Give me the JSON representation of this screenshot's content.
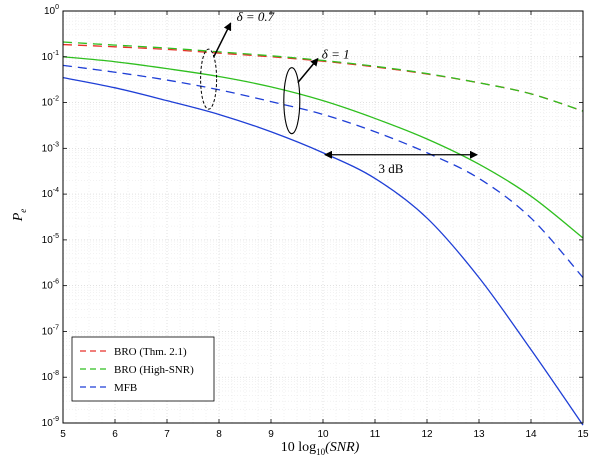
{
  "chart_data": {
    "type": "line",
    "title": "",
    "xlabel": "10 log10(SNR)",
    "ylabel": "P_e",
    "xlim": [
      5,
      15
    ],
    "ylim_log10": [
      -9,
      0
    ],
    "y_scale": "log",
    "grid": "major and minor, dotted",
    "legend_position": "bottom-left",
    "x_ticks": [
      "5",
      "6",
      "7",
      "8",
      "9",
      "10",
      "11",
      "12",
      "13",
      "14",
      "15"
    ],
    "y_ticks": [
      "10^-9",
      "10^-8",
      "10^-7",
      "10^-6",
      "10^-5",
      "10^-4",
      "10^-3",
      "10^-2",
      "10^-1",
      "10^0"
    ],
    "x": [
      5,
      6,
      7,
      8,
      9,
      10,
      11,
      12,
      13,
      14,
      15
    ],
    "series": [
      {
        "name": "BRO (Thm. 2.1)",
        "group": "delta = 0.7",
        "color": "#e8312a",
        "dash": "dashed",
        "values": [
          0.185,
          0.165,
          0.145,
          0.12,
          0.1,
          0.08,
          0.06,
          0.042,
          0.027,
          0.0155,
          0.0065
        ]
      },
      {
        "name": "BRO (High-SNR)",
        "group": "delta = 0.7",
        "color": "#2fbf1f",
        "dash": "dashed",
        "values": [
          0.21,
          0.18,
          0.155,
          0.128,
          0.105,
          0.083,
          0.062,
          0.043,
          0.027,
          0.0155,
          0.0065
        ]
      },
      {
        "name": "",
        "group": "delta = 1",
        "color": "#2fbf1f",
        "dash": "solid",
        "values": [
          0.1,
          0.078,
          0.055,
          0.037,
          0.022,
          0.011,
          0.0045,
          0.0016,
          0.00045,
          9e-05,
          1.1e-05
        ]
      },
      {
        "name": "MFB",
        "group": "delta = 0.7",
        "color": "#1f3fd6",
        "dash": "dashed",
        "values": [
          0.065,
          0.046,
          0.031,
          0.019,
          0.0105,
          0.0055,
          0.0023,
          0.0008,
          0.00022,
          3e-05,
          1.5e-06
        ]
      },
      {
        "name": "",
        "group": "delta = 1",
        "color": "#1f3fd6",
        "dash": "solid",
        "values": [
          0.035,
          0.021,
          0.011,
          0.0055,
          0.0023,
          0.0008,
          0.00022,
          3e-05,
          1.5e-06,
          4e-08,
          9e-10
        ]
      }
    ],
    "annotations": [
      {
        "text": "δ = 0.7",
        "target_x": 7.8,
        "target_y": 0.12
      },
      {
        "text": "δ = 1",
        "target_x": 9.4,
        "target_y": 0.011
      },
      {
        "text": "3 dB",
        "from_x": 10,
        "to_x": 13,
        "y": 0.0008
      }
    ]
  },
  "axis_text": {
    "xlabel_main": "10 log",
    "xlabel_sub": "10",
    "xlabel_arg": "(SNR)",
    "ylabel_main": "P",
    "ylabel_sub": "e"
  }
}
